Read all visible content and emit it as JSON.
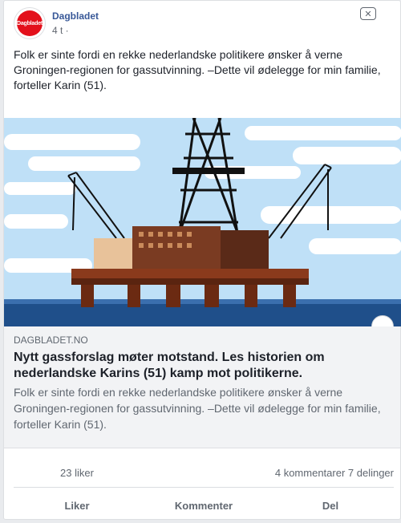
{
  "post": {
    "page_name": "Dagbladet",
    "avatar_text": "Dagbladet",
    "timestamp": "4 t ·",
    "text": "Folk er sinte fordi en rekke nederlandske politikere ønsker å verne Groningen-regionen for gassutvinning. –Dette vil ødelegge for min familie, forteller Karin (51)."
  },
  "link": {
    "domain": "DAGBLADET.NO",
    "title": "Nytt gassforslag møter motstand. Les historien om nederlandske Karins (51) kamp mot politikerne.",
    "description": "Folk er sinte fordi en rekke nederlandske politikere ønsker å verne Groningen-regionen for gassutvinning. –Dette vil ødelegge for min familie, forteller Karin (51)."
  },
  "stats": {
    "likes": "23 liker",
    "comments_shares": "4 kommentarer  7 delinger"
  },
  "actions": {
    "like": "Liker",
    "comment": "Kommenter",
    "share": "Del"
  },
  "icons": {
    "close": "close-icon",
    "avatar": "dagbladet-logo"
  },
  "colors": {
    "brand_red": "#e3101b",
    "link_blue": "#385898",
    "sea": "#1f4f8a",
    "sky": "#bfe0f7"
  }
}
